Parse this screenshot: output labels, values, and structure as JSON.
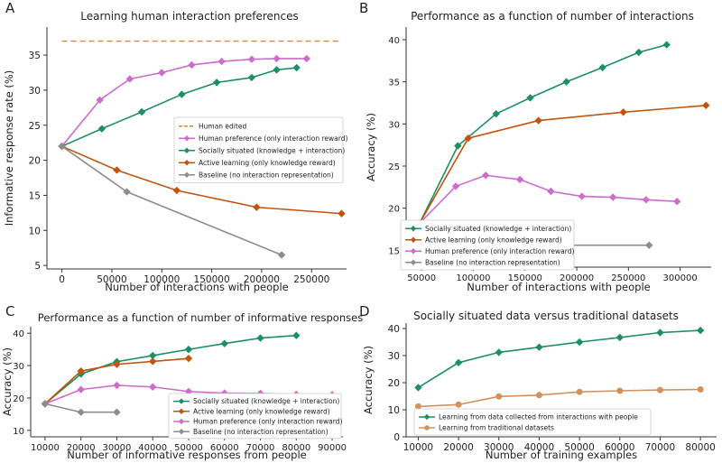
{
  "colors": {
    "human_edited": "#d2873c",
    "human_preference": "#cc6ccc",
    "socially_situated": "#1d8f63",
    "active_learning": "#c1540e",
    "baseline": "#8d8d8d",
    "traditional": "#d4915c"
  },
  "chart_data": [
    {
      "panel_letter": "A",
      "type": "line",
      "title": "Learning human interaction preferences",
      "xlabel": "Number of interactions with people",
      "ylabel": "Informative response rate (%)",
      "xlim": [
        -15000,
        285000
      ],
      "ylim": [
        4.5,
        39
      ],
      "xticks": [
        0,
        50000,
        100000,
        150000,
        200000,
        250000
      ],
      "xtick_labels": [
        "0",
        "50000",
        "100000",
        "150000",
        "200000",
        "250000"
      ],
      "yticks": [
        5,
        10,
        15,
        20,
        25,
        30,
        35
      ],
      "ytick_labels": [
        "5",
        "10",
        "15",
        "20",
        "25",
        "30",
        "35"
      ],
      "legend_position": "center-right",
      "series": [
        {
          "name": "Human edited",
          "color_key": "human_edited",
          "dashed": true,
          "marker": "none",
          "x": [
            0,
            280000
          ],
          "y": [
            37,
            37
          ]
        },
        {
          "name": "Human preference (only interaction reward)",
          "color_key": "human_preference",
          "marker": "diamond",
          "x": [
            0,
            38000,
            68000,
            100000,
            130000,
            160000,
            190000,
            215000,
            245000
          ],
          "y": [
            22,
            28.6,
            31.6,
            32.5,
            33.6,
            34.1,
            34.4,
            34.5,
            34.5
          ]
        },
        {
          "name": "Socially situated (knowledge + interaction)",
          "color_key": "socially_situated",
          "marker": "diamond",
          "x": [
            0,
            40000,
            80000,
            120000,
            155000,
            190000,
            215000,
            235000
          ],
          "y": [
            22,
            24.5,
            26.9,
            29.4,
            31.1,
            31.8,
            32.9,
            33.2
          ]
        },
        {
          "name": "Active learning (only knowledge reward)",
          "color_key": "active_learning",
          "marker": "diamond",
          "x": [
            0,
            55000,
            115000,
            195000,
            280000
          ],
          "y": [
            22,
            18.6,
            15.7,
            13.3,
            12.4
          ]
        },
        {
          "name": "Baseline (no interaction representation)",
          "color_key": "baseline",
          "marker": "diamond",
          "x": [
            0,
            65000,
            220000
          ],
          "y": [
            22,
            15.5,
            6.5
          ]
        }
      ]
    },
    {
      "panel_letter": "B",
      "type": "line",
      "title": "Performance as a function of number of interactions",
      "xlabel": "Number of interactions with people",
      "ylabel": "Accuracy (%)",
      "xlim": [
        35000,
        330000
      ],
      "ylim": [
        13,
        41.5
      ],
      "xticks": [
        50000,
        100000,
        150000,
        200000,
        250000,
        300000
      ],
      "xtick_labels": [
        "50000",
        "100000",
        "150000",
        "200000",
        "250000",
        "300000"
      ],
      "yticks": [
        15,
        20,
        25,
        30,
        35,
        40
      ],
      "ytick_labels": [
        "15",
        "20",
        "25",
        "30",
        "35",
        "40"
      ],
      "legend_position": "bottom-left",
      "series": [
        {
          "name": "Socially situated (knowledge + interaction)",
          "color_key": "socially_situated",
          "marker": "diamond",
          "x": [
            48000,
            85000,
            122000,
            155000,
            190000,
            225000,
            260000,
            287000
          ],
          "y": [
            18.2,
            27.4,
            31.2,
            33.1,
            35,
            36.7,
            38.5,
            39.4
          ]
        },
        {
          "name": "Active learning (only knowledge reward)",
          "color_key": "active_learning",
          "marker": "diamond",
          "x": [
            48000,
            95000,
            163000,
            245000,
            325000
          ],
          "y": [
            18.2,
            28.3,
            30.4,
            31.4,
            32.2
          ]
        },
        {
          "name": "Human preference (only interaction reward)",
          "color_key": "human_preference",
          "marker": "diamond",
          "x": [
            48000,
            83000,
            112000,
            145000,
            175000,
            205000,
            235000,
            267000,
            297000
          ],
          "y": [
            18.2,
            22.6,
            23.9,
            23.4,
            22,
            21.4,
            21.3,
            21,
            20.8
          ]
        },
        {
          "name": "Baseline (no interaction representation)",
          "color_key": "baseline",
          "marker": "diamond",
          "x": [
            48000,
            110000,
            270000
          ],
          "y": [
            18.2,
            15.6,
            15.6
          ]
        }
      ]
    },
    {
      "panel_letter": "C",
      "type": "line",
      "title": "Performance as a function of number of informative responses",
      "xlabel": "Number of informative responses from people",
      "ylabel": "Accuracy (%)",
      "xlim": [
        6000,
        93000
      ],
      "ylim": [
        8,
        42
      ],
      "xticks": [
        10000,
        20000,
        30000,
        40000,
        50000,
        60000,
        70000,
        80000,
        90000
      ],
      "xtick_labels": [
        "10000",
        "20000",
        "30000",
        "40000",
        "50000",
        "60000",
        "70000",
        "80000",
        "90000"
      ],
      "yticks": [
        10,
        20,
        30,
        40
      ],
      "ytick_labels": [
        "10",
        "20",
        "30",
        "40"
      ],
      "legend_position": "bottom-right",
      "series": [
        {
          "name": "Socially situated (knowledge + interaction)",
          "color_key": "socially_situated",
          "marker": "diamond",
          "x": [
            10000,
            20000,
            30000,
            40000,
            50000,
            60000,
            70000,
            80000
          ],
          "y": [
            18.2,
            27.4,
            31.2,
            33.1,
            35,
            36.8,
            38.5,
            39.3
          ]
        },
        {
          "name": "Active learning (only knowledge reward)",
          "color_key": "active_learning",
          "marker": "diamond",
          "x": [
            10000,
            20000,
            30000,
            40000,
            50000
          ],
          "y": [
            18.2,
            28.3,
            30.4,
            31.3,
            32.2
          ]
        },
        {
          "name": "Human preference (only interaction reward)",
          "color_key": "human_preference",
          "marker": "diamond",
          "x": [
            10000,
            20000,
            30000,
            40000,
            50000,
            60000,
            70000,
            80000,
            90000
          ],
          "y": [
            18.2,
            22.6,
            23.9,
            23.4,
            22,
            21.5,
            21.4,
            21.1,
            21
          ]
        },
        {
          "name": "Baseline (no interaction representation)",
          "color_key": "baseline",
          "marker": "diamond",
          "x": [
            10000,
            20000,
            30000
          ],
          "y": [
            18.2,
            15.6,
            15.6
          ]
        }
      ]
    },
    {
      "panel_letter": "D",
      "type": "line",
      "title": "Socially situated data versus traditional datasets",
      "xlabel": "Number of training examples",
      "ylabel": "Accuracy (%)",
      "xlim": [
        7000,
        84000
      ],
      "ylim": [
        0,
        42
      ],
      "xticks": [
        10000,
        20000,
        30000,
        40000,
        50000,
        60000,
        70000,
        80000
      ],
      "xtick_labels": [
        "10000",
        "20000",
        "30000",
        "40000",
        "50000",
        "60000",
        "70000",
        "80000"
      ],
      "yticks": [
        0,
        10,
        20,
        30,
        40
      ],
      "ytick_labels": [
        "0",
        "10",
        "20",
        "30",
        "40"
      ],
      "legend_position": "bottom-left",
      "series": [
        {
          "name": "Learning from data collected from interactions with people",
          "color_key": "socially_situated",
          "marker": "diamond",
          "x": [
            10000,
            20000,
            30000,
            40000,
            50000,
            60000,
            70000,
            80000
          ],
          "y": [
            18.2,
            27.4,
            31.2,
            33.1,
            35,
            36.7,
            38.5,
            39.3
          ]
        },
        {
          "name": "Learning from traditional datasets",
          "color_key": "traditional",
          "marker": "circle",
          "x": [
            10000,
            20000,
            30000,
            40000,
            50000,
            60000,
            70000,
            80000
          ],
          "y": [
            11.2,
            11.9,
            14.9,
            15.4,
            16.6,
            17,
            17.3,
            17.5
          ]
        }
      ]
    }
  ]
}
